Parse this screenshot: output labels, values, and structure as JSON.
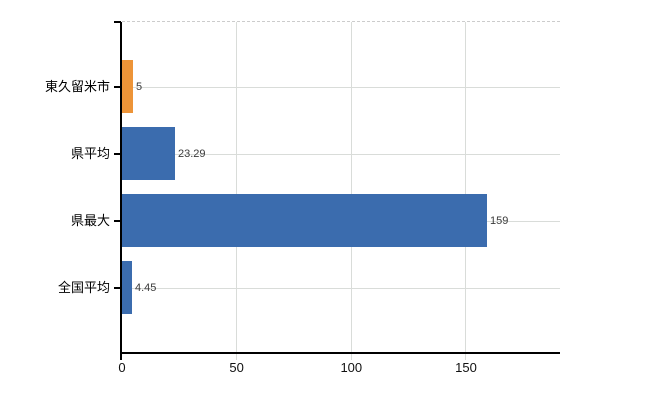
{
  "chart_data": {
    "type": "bar",
    "orientation": "horizontal",
    "title": "",
    "xlabel": "",
    "ylabel": "",
    "categories": [
      "東久留米市",
      "県平均",
      "県最大",
      "全国平均"
    ],
    "values": [
      5,
      23.29,
      159,
      4.45
    ],
    "value_labels": [
      "5",
      "23.29",
      "159",
      "4.45"
    ],
    "bar_colors": [
      "#ED9438",
      "#3B6CAE",
      "#3B6CAE",
      "#3B6CAE"
    ],
    "x_ticks": [
      0,
      50,
      100,
      150
    ],
    "x_tick_labels": [
      "0",
      "50",
      "100",
      "150"
    ],
    "xlim": [
      0,
      191
    ],
    "grid": true,
    "legend": "none",
    "colors": {
      "axis": "#000000",
      "gridline": "#d9dcd9",
      "plot_top_border": "#cccccc",
      "value_label_text": "#3a3a3a",
      "tick_label_text": "#111111",
      "category_label_text": "#000000",
      "background": "#ffffff"
    }
  }
}
